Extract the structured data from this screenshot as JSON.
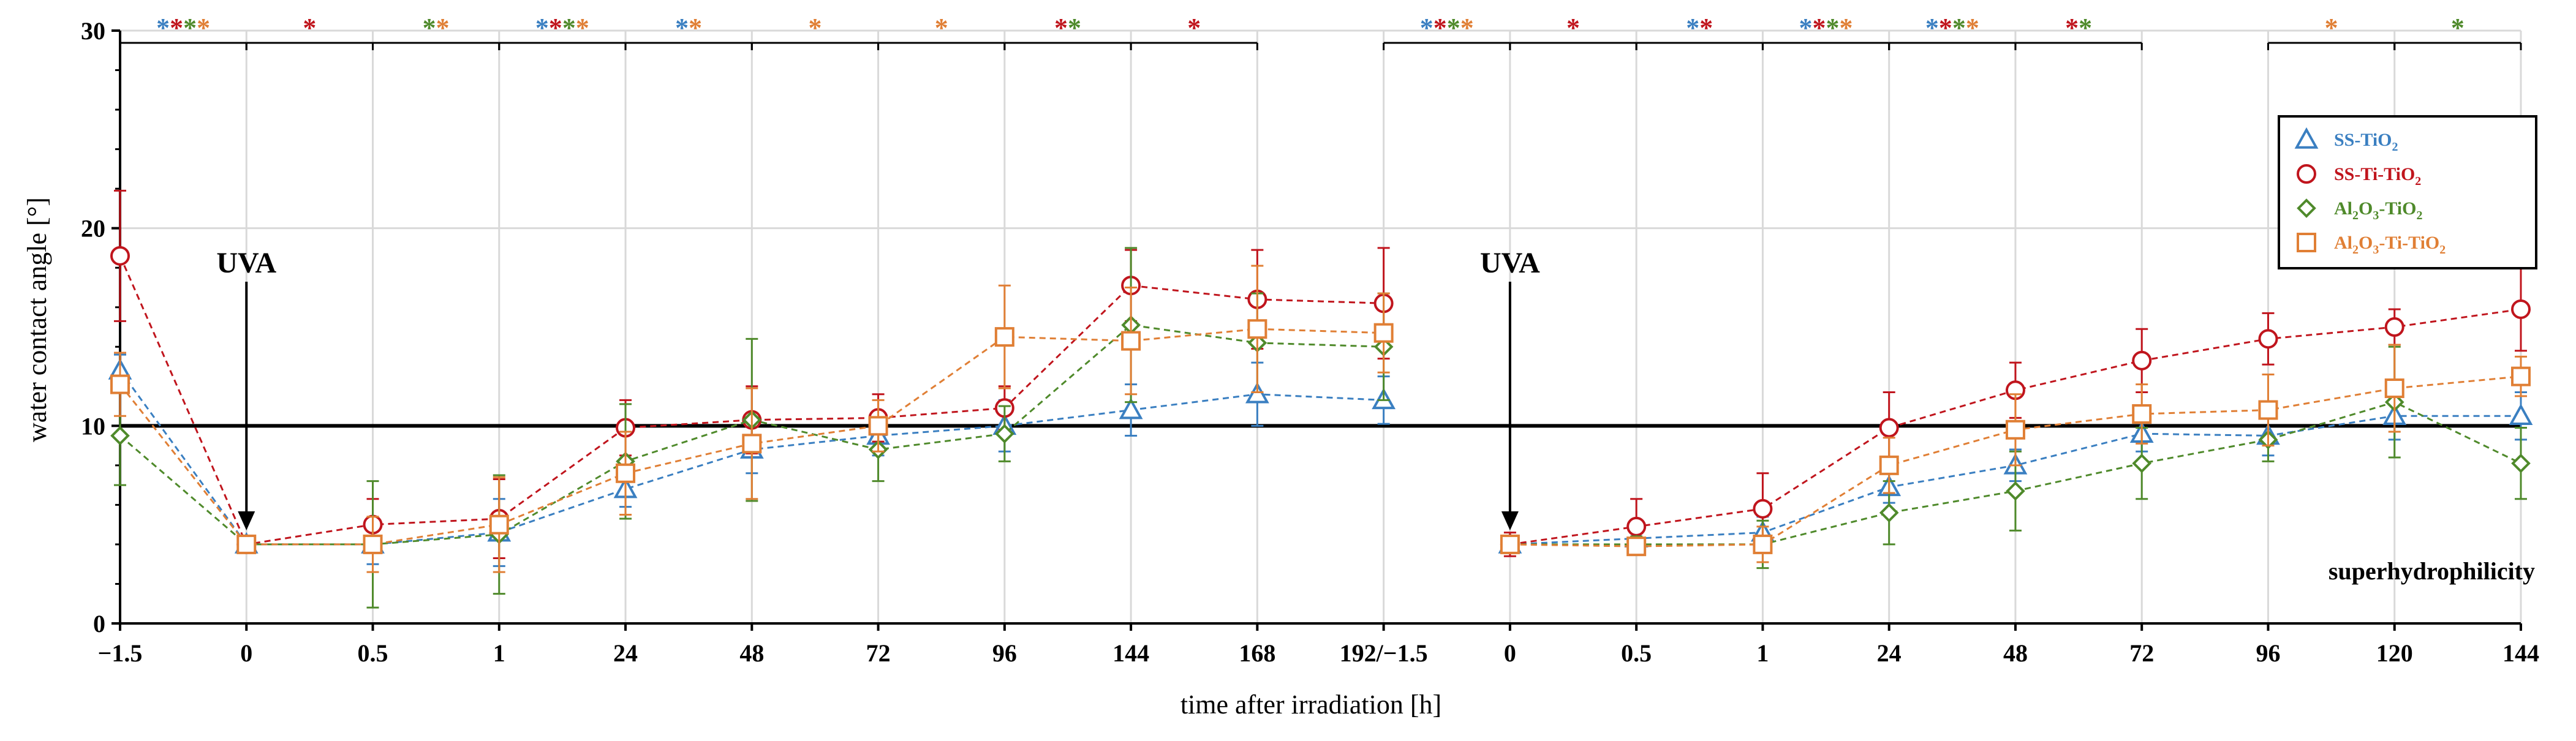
{
  "chart_data": {
    "type": "line",
    "xlabel": "time after irradiation [h]",
    "ylabel": "water contact angle [°]",
    "ylim": [
      0,
      30
    ],
    "yticks": [
      0,
      10,
      20,
      30
    ],
    "grid": true,
    "legend_position": "top-right",
    "categories": [
      "−1.5",
      "0",
      "0.5",
      "1",
      "24",
      "48",
      "72",
      "96",
      "144",
      "168",
      "192/−1.5",
      "0",
      "0.5",
      "1",
      "24",
      "48",
      "72",
      "96",
      "120",
      "144"
    ],
    "reference_line": {
      "y": 10,
      "label": "superhydrophilicity"
    },
    "annotations": [
      {
        "text": "UVA",
        "category_index": 1
      },
      {
        "text": "UVA",
        "category_index": 11
      }
    ],
    "colors": {
      "SS-TiO2": "#3a7fc1",
      "SS-Ti-TiO2": "#c0151d",
      "Al2O3-TiO2": "#4f8a2b",
      "Al2O3-Ti-TiO2": "#e07f35"
    },
    "series": [
      {
        "name": "SS-TiO2",
        "label_parts": [
          "SS-TiO",
          "2",
          ""
        ],
        "marker": "triangle",
        "color": "#3a7fc1",
        "segments": [
          {
            "x_index": [
              0,
              1,
              2,
              3,
              4,
              5,
              6,
              7,
              8,
              9,
              10
            ],
            "values": [
              12.8,
              4.0,
              4.0,
              4.6,
              6.8,
              8.8,
              9.5,
              10.0,
              10.8,
              11.6,
              11.3
            ],
            "errors": [
              0.8,
              0.3,
              1.0,
              1.7,
              0.9,
              1.2,
              1.0,
              1.3,
              1.3,
              1.6,
              1.2
            ]
          },
          {
            "x_index": [
              11,
              12,
              13,
              14,
              15,
              16,
              17,
              18,
              19
            ],
            "values": [
              4.0,
              4.3,
              4.6,
              6.9,
              8.0,
              9.6,
              9.5,
              10.5,
              10.5
            ],
            "errors": [
              0.4,
              0.6,
              0.8,
              0.8,
              0.8,
              0.9,
              1.0,
              1.2,
              1.2
            ]
          }
        ]
      },
      {
        "name": "SS-Ti-TiO2",
        "label_parts": [
          "SS-Ti-TiO",
          "2",
          ""
        ],
        "marker": "circle",
        "color": "#c0151d",
        "segments": [
          {
            "x_index": [
              0,
              1,
              2,
              3,
              4,
              5,
              6,
              7,
              8,
              9,
              10
            ],
            "values": [
              18.6,
              4.0,
              5.0,
              5.3,
              9.9,
              10.3,
              10.4,
              10.9,
              17.1,
              16.4,
              16.2
            ],
            "errors": [
              3.3,
              0.4,
              1.3,
              2.0,
              1.4,
              1.7,
              1.2,
              1.1,
              1.8,
              2.5,
              2.8
            ]
          },
          {
            "x_index": [
              11,
              12,
              13,
              14,
              15,
              16,
              17,
              18,
              19
            ],
            "values": [
              4.0,
              4.9,
              5.8,
              9.9,
              11.8,
              13.3,
              14.4,
              15.0,
              15.9
            ],
            "errors": [
              0.6,
              1.4,
              1.8,
              1.8,
              1.4,
              1.6,
              1.3,
              0.9,
              2.1
            ]
          }
        ]
      },
      {
        "name": "Al2O3-TiO2",
        "label_parts": [
          "Al",
          "2",
          "O",
          "3",
          "-TiO",
          "2"
        ],
        "marker": "diamond",
        "color": "#4f8a2b",
        "segments": [
          {
            "x_index": [
              0,
              1,
              2,
              3,
              4,
              5,
              6,
              7,
              8,
              9,
              10
            ],
            "values": [
              9.5,
              4.0,
              4.0,
              4.5,
              8.2,
              10.3,
              8.8,
              9.6,
              15.1,
              14.2,
              14.0
            ],
            "errors": [
              2.5,
              0.3,
              3.2,
              3.0,
              2.9,
              4.1,
              1.6,
              1.4,
              3.9,
              2.5,
              2.7
            ]
          },
          {
            "x_index": [
              11,
              12,
              13,
              14,
              15,
              16,
              17,
              18,
              19
            ],
            "values": [
              4.0,
              4.0,
              4.0,
              5.6,
              6.7,
              8.1,
              9.3,
              11.2,
              8.1
            ],
            "errors": [
              0.4,
              0.4,
              1.2,
              1.6,
              2.0,
              1.8,
              1.1,
              2.8,
              1.8
            ]
          }
        ]
      },
      {
        "name": "Al2O3-Ti-TiO2",
        "label_parts": [
          "Al",
          "2",
          "O",
          "3",
          "-Ti-TiO",
          "2"
        ],
        "marker": "square",
        "color": "#e07f35",
        "segments": [
          {
            "x_index": [
              0,
              1,
              2,
              3,
              4,
              5,
              6,
              7,
              8,
              9,
              10
            ],
            "values": [
              12.1,
              4.0,
              4.0,
              5.0,
              7.6,
              9.1,
              10.0,
              14.5,
              14.3,
              14.9,
              14.7
            ],
            "errors": [
              1.6,
              0.3,
              1.4,
              2.4,
              2.1,
              2.8,
              1.3,
              2.6,
              2.7,
              3.2,
              2.0
            ]
          },
          {
            "x_index": [
              11,
              12,
              13,
              14,
              15,
              16,
              17,
              18,
              19
            ],
            "values": [
              4.0,
              3.9,
              4.0,
              8.0,
              9.8,
              10.6,
              10.8,
              11.9,
              12.5
            ],
            "errors": [
              0.4,
              0.4,
              0.9,
              1.4,
              1.8,
              1.5,
              1.8,
              2.2,
              1.0
            ]
          }
        ]
      }
    ],
    "significance": [
      {
        "interval": [
          0,
          1
        ],
        "stars": [
          "SS-TiO2",
          "SS-Ti-TiO2",
          "Al2O3-TiO2",
          "Al2O3-Ti-TiO2"
        ]
      },
      {
        "interval": [
          1,
          2
        ],
        "stars": [
          "SS-Ti-TiO2"
        ]
      },
      {
        "interval": [
          2,
          3
        ],
        "stars": [
          "Al2O3-TiO2",
          "Al2O3-Ti-TiO2"
        ]
      },
      {
        "interval": [
          3,
          4
        ],
        "stars": [
          "SS-TiO2",
          "SS-Ti-TiO2",
          "Al2O3-TiO2",
          "Al2O3-Ti-TiO2"
        ]
      },
      {
        "interval": [
          4,
          5
        ],
        "stars": [
          "SS-TiO2",
          "Al2O3-Ti-TiO2"
        ]
      },
      {
        "interval": [
          5,
          6
        ],
        "stars": [
          "Al2O3-Ti-TiO2"
        ]
      },
      {
        "interval": [
          6,
          7
        ],
        "stars": [
          "Al2O3-Ti-TiO2"
        ]
      },
      {
        "interval": [
          7,
          8
        ],
        "stars": [
          "SS-Ti-TiO2",
          "Al2O3-TiO2"
        ]
      },
      {
        "interval": [
          8,
          9
        ],
        "stars": [
          "SS-Ti-TiO2"
        ]
      },
      {
        "interval": [
          10,
          11
        ],
        "stars": [
          "SS-TiO2",
          "SS-Ti-TiO2",
          "Al2O3-TiO2",
          "Al2O3-Ti-TiO2"
        ]
      },
      {
        "interval": [
          11,
          12
        ],
        "stars": [
          "SS-Ti-TiO2"
        ]
      },
      {
        "interval": [
          12,
          13
        ],
        "stars": [
          "SS-TiO2",
          "SS-Ti-TiO2"
        ]
      },
      {
        "interval": [
          13,
          14
        ],
        "stars": [
          "SS-TiO2",
          "SS-Ti-TiO2",
          "Al2O3-TiO2",
          "Al2O3-Ti-TiO2"
        ]
      },
      {
        "interval": [
          14,
          15
        ],
        "stars": [
          "SS-TiO2",
          "SS-Ti-TiO2",
          "Al2O3-TiO2",
          "Al2O3-Ti-TiO2"
        ]
      },
      {
        "interval": [
          15,
          16
        ],
        "stars": [
          "SS-Ti-TiO2",
          "Al2O3-TiO2"
        ]
      },
      {
        "interval": [
          17,
          18
        ],
        "stars": [
          "Al2O3-Ti-TiO2"
        ]
      },
      {
        "interval": [
          18,
          19
        ],
        "stars": [
          "Al2O3-TiO2"
        ]
      }
    ],
    "star_symbol": "*"
  }
}
